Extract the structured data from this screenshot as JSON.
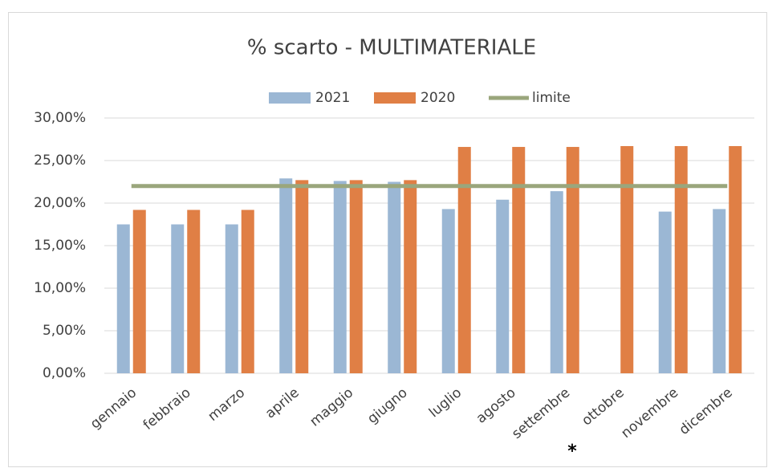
{
  "chart_data": {
    "type": "bar",
    "title": "% scarto - MULTIMATERIALE",
    "categories": [
      "gennaio",
      "febbraio",
      "marzo",
      "aprile",
      "maggio",
      "giugno",
      "luglio",
      "agosto",
      "settembre",
      "ottobre",
      "novembre",
      "dicembre"
    ],
    "series": [
      {
        "name": "2021",
        "color": "#9bb7d4",
        "values": [
          17.5,
          17.5,
          17.5,
          22.9,
          22.6,
          22.5,
          19.3,
          20.4,
          21.4,
          null,
          19.0,
          19.3
        ]
      },
      {
        "name": "2020",
        "color": "#e07f45",
        "values": [
          19.2,
          19.2,
          19.2,
          22.7,
          22.7,
          22.7,
          26.6,
          26.6,
          26.6,
          26.7,
          26.7,
          26.7
        ]
      },
      {
        "name": "limite",
        "color": "#9aa67c",
        "type": "line",
        "values": [
          22.0,
          22.0,
          22.0,
          22.0,
          22.0,
          22.0,
          22.0,
          22.0,
          22.0,
          22.0,
          22.0,
          22.0
        ]
      }
    ],
    "ylim": [
      0,
      30
    ],
    "yticks": [
      {
        "value": 0,
        "label": "0,00%"
      },
      {
        "value": 5,
        "label": "5,00%"
      },
      {
        "value": 10,
        "label": "10,00%"
      },
      {
        "value": 15,
        "label": "15,00%"
      },
      {
        "value": 20,
        "label": "20,00%"
      },
      {
        "value": 25,
        "label": "25,00%"
      },
      {
        "value": 30,
        "label": "30,00%"
      }
    ],
    "grid": true,
    "legend": "top",
    "annotation": "*"
  }
}
